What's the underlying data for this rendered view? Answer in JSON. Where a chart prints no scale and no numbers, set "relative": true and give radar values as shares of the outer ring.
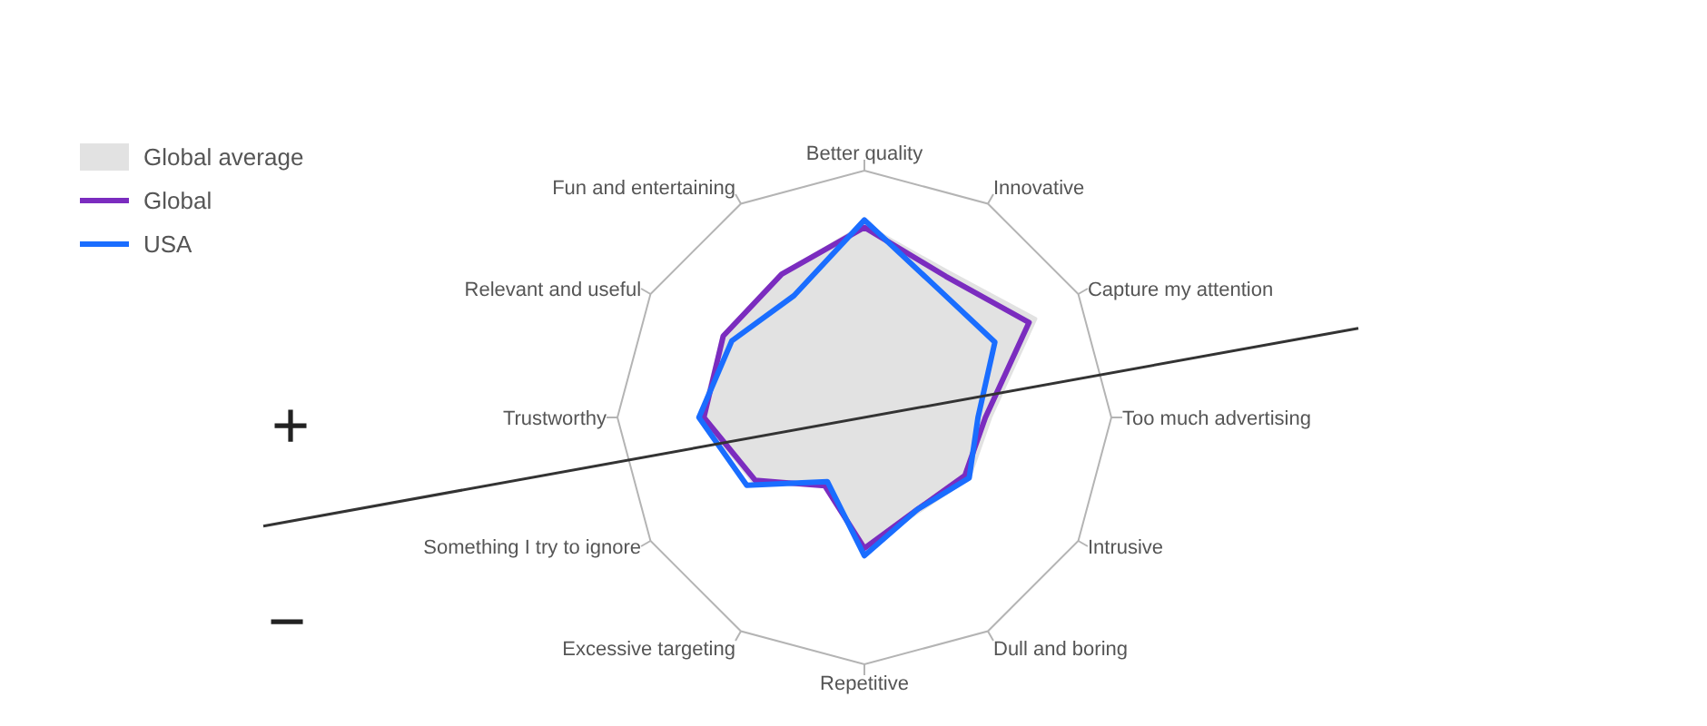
{
  "chart_data": {
    "type": "radar",
    "relative": true,
    "grid": true,
    "legend": "top left",
    "categories": [
      "Better quality",
      "Innovative",
      "Capture my attention",
      "Too much advertising",
      "Intrusive",
      "Dull and boring",
      "Repetitive",
      "Excessive targeting",
      "Something I try to ignore",
      "Trustworthy",
      "Relevant and useful",
      "Fun and entertaining"
    ],
    "series": [
      {
        "name": "Global average",
        "type": "area",
        "color": "#e2e2e2",
        "values": [
          0.78,
          0.68,
          0.8,
          0.51,
          0.49,
          0.44,
          0.53,
          0.31,
          0.52,
          0.66,
          0.66,
          0.67
        ]
      },
      {
        "name": "Global",
        "color": "#7b2cbf",
        "values": [
          0.77,
          0.66,
          0.77,
          0.49,
          0.47,
          0.43,
          0.53,
          0.32,
          0.51,
          0.65,
          0.66,
          0.67
        ]
      },
      {
        "name": "USA",
        "color": "#1a6dff",
        "values": [
          0.8,
          0.6,
          0.61,
          0.46,
          0.49,
          0.43,
          0.56,
          0.3,
          0.55,
          0.67,
          0.62,
          0.57
        ]
      }
    ],
    "annotations": [
      "+",
      "−"
    ]
  }
}
